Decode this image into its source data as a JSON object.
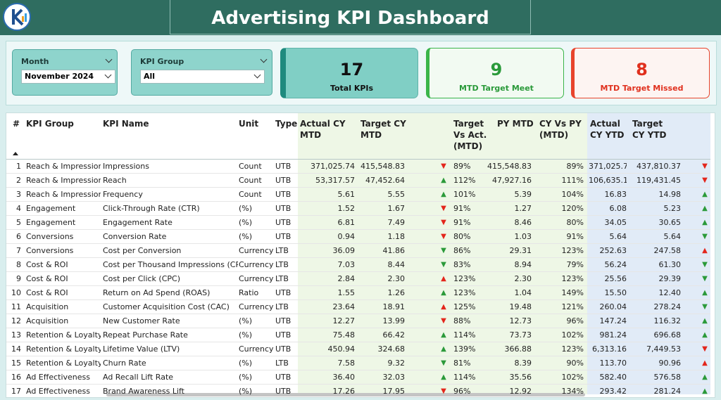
{
  "header": {
    "title": "Advertising KPI Dashboard"
  },
  "filters": [
    {
      "label": "Month",
      "value": "November 2024"
    },
    {
      "label": "KPI Group",
      "value": "All"
    }
  ],
  "cards": [
    {
      "value": "17",
      "label": "Total KPIs"
    },
    {
      "value": "9",
      "label": "MTD Target Meet"
    },
    {
      "value": "8",
      "label": "MTD Target Missed"
    }
  ],
  "table": {
    "columns": [
      "#",
      "KPI Group",
      "KPI Name",
      "Unit",
      "Type",
      "Actual CY MTD",
      "Target CY MTD",
      "Target Vs Act. (MTD)",
      "PY MTD",
      "CY Vs PY (MTD)",
      "Actual CY YTD",
      "Target CY YTD"
    ],
    "rows": [
      {
        "cells": [
          "1",
          "Reach & Impressions",
          "Impressions",
          "Count",
          "UTB",
          "371,025.74",
          "415,548.83",
          "▼",
          "89%",
          "415,548.83",
          "89%",
          "371,025.74",
          "437,810.37",
          "▼"
        ],
        "icon_colors": [
          "#e3261c",
          "#e3261c"
        ]
      },
      {
        "cells": [
          "2",
          "Reach & Impressions",
          "Reach",
          "Count",
          "UTB",
          "53,317.57",
          "47,452.64",
          "▲",
          "112%",
          "47,927.16",
          "111%",
          "106,635.14",
          "119,431.45",
          "▼"
        ],
        "icon_colors": [
          "#2b9a3a",
          "#e3261c"
        ]
      },
      {
        "cells": [
          "3",
          "Reach & Impressions",
          "Frequency",
          "Count",
          "UTB",
          "5.61",
          "5.55",
          "▲",
          "101%",
          "5.39",
          "104%",
          "16.83",
          "14.98",
          "▲"
        ],
        "icon_colors": [
          "#2b9a3a",
          "#2b9a3a"
        ]
      },
      {
        "cells": [
          "4",
          "Engagement",
          "Click-Through Rate (CTR)",
          "(%)",
          "UTB",
          "1.52",
          "1.67",
          "▼",
          "91%",
          "1.27",
          "120%",
          "6.08",
          "5.23",
          "▲"
        ],
        "icon_colors": [
          "#e3261c",
          "#2b9a3a"
        ]
      },
      {
        "cells": [
          "5",
          "Engagement",
          "Engagement Rate",
          "(%)",
          "UTB",
          "6.81",
          "7.49",
          "▼",
          "91%",
          "8.46",
          "80%",
          "34.05",
          "30.65",
          "▲"
        ],
        "icon_colors": [
          "#e3261c",
          "#2b9a3a"
        ]
      },
      {
        "cells": [
          "6",
          "Conversions",
          "Conversion Rate",
          "(%)",
          "UTB",
          "0.94",
          "1.18",
          "▼",
          "80%",
          "1.03",
          "91%",
          "5.64",
          "5.64",
          "▼"
        ],
        "icon_colors": [
          "#e3261c",
          "#2b9a3a"
        ]
      },
      {
        "cells": [
          "7",
          "Conversions",
          "Cost per Conversion",
          "Currency",
          "LTB",
          "36.09",
          "41.86",
          "▼",
          "86%",
          "29.31",
          "123%",
          "252.63",
          "247.58",
          "▲"
        ],
        "icon_colors": [
          "#2b9a3a",
          "#e3261c"
        ]
      },
      {
        "cells": [
          "8",
          "Cost & ROI",
          "Cost per Thousand Impressions (CPM)",
          "Currency",
          "LTB",
          "7.03",
          "8.44",
          "▼",
          "83%",
          "8.94",
          "79%",
          "56.24",
          "61.30",
          "▼"
        ],
        "icon_colors": [
          "#2b9a3a",
          "#2b9a3a"
        ]
      },
      {
        "cells": [
          "9",
          "Cost & ROI",
          "Cost per Click (CPC)",
          "Currency",
          "LTB",
          "2.84",
          "2.30",
          "▲",
          "123%",
          "2.30",
          "123%",
          "25.56",
          "29.39",
          "▼"
        ],
        "icon_colors": [
          "#e3261c",
          "#2b9a3a"
        ]
      },
      {
        "cells": [
          "10",
          "Cost & ROI",
          "Return on Ad Spend (ROAS)",
          "Ratio",
          "UTB",
          "1.55",
          "1.26",
          "▲",
          "123%",
          "1.04",
          "149%",
          "15.50",
          "12.40",
          "▲"
        ],
        "icon_colors": [
          "#2b9a3a",
          "#2b9a3a"
        ]
      },
      {
        "cells": [
          "11",
          "Acquisition",
          "Customer Acquisition Cost (CAC)",
          "Currency",
          "LTB",
          "23.64",
          "18.91",
          "▲",
          "125%",
          "19.48",
          "121%",
          "260.04",
          "278.24",
          "▼"
        ],
        "icon_colors": [
          "#e3261c",
          "#2b9a3a"
        ]
      },
      {
        "cells": [
          "12",
          "Acquisition",
          "New Customer Rate",
          "(%)",
          "UTB",
          "12.27",
          "13.99",
          "▼",
          "88%",
          "12.73",
          "96%",
          "147.24",
          "116.32",
          "▲"
        ],
        "icon_colors": [
          "#e3261c",
          "#2b9a3a"
        ]
      },
      {
        "cells": [
          "13",
          "Retention & Loyalty",
          "Repeat Purchase Rate",
          "(%)",
          "UTB",
          "75.48",
          "66.42",
          "▲",
          "114%",
          "73.73",
          "102%",
          "981.24",
          "696.68",
          "▲"
        ],
        "icon_colors": [
          "#2b9a3a",
          "#2b9a3a"
        ]
      },
      {
        "cells": [
          "14",
          "Retention & Loyalty",
          "Lifetime Value (LTV)",
          "Currency",
          "UTB",
          "450.94",
          "324.68",
          "▲",
          "139%",
          "366.88",
          "123%",
          "6,313.16",
          "7,449.53",
          "▼"
        ],
        "icon_colors": [
          "#2b9a3a",
          "#e3261c"
        ]
      },
      {
        "cells": [
          "15",
          "Retention & Loyalty",
          "Churn Rate",
          "(%)",
          "LTB",
          "7.58",
          "9.32",
          "▼",
          "81%",
          "8.39",
          "90%",
          "113.70",
          "90.96",
          "▲"
        ],
        "icon_colors": [
          "#2b9a3a",
          "#e3261c"
        ]
      },
      {
        "cells": [
          "16",
          "Ad Effectiveness",
          "Ad Recall Lift Rate",
          "(%)",
          "UTB",
          "36.40",
          "32.03",
          "▲",
          "114%",
          "35.56",
          "102%",
          "582.40",
          "576.58",
          "▲"
        ],
        "icon_colors": [
          "#2b9a3a",
          "#2b9a3a"
        ]
      },
      {
        "cells": [
          "17",
          "Ad Effectiveness",
          "Brand Awareness Lift",
          "(%)",
          "UTB",
          "17.26",
          "17.95",
          "▼",
          "96%",
          "12.92",
          "134%",
          "293.42",
          "281.24",
          "▲"
        ],
        "icon_colors": [
          "#e3261c",
          "#2b9a3a"
        ]
      }
    ]
  }
}
